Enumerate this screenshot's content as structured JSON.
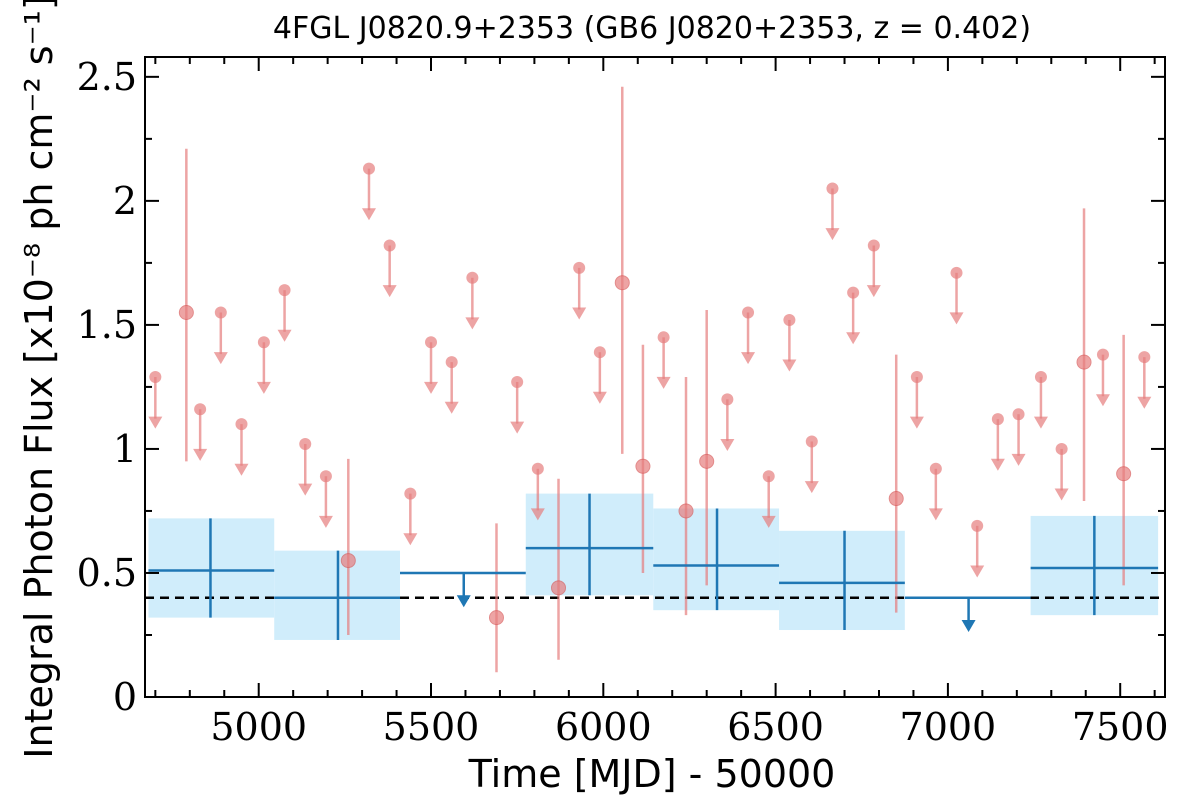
{
  "chart_data": {
    "type": "scatter",
    "title": "4FGL J0820.9+2353 (GB6 J0820+2353, z = 0.402)",
    "xlabel": "Time [MJD] - 50000",
    "ylabel": "Integral Photon Flux [x10⁻⁸ ph cm⁻² s⁻¹]",
    "xlim": [
      4670,
      7630
    ],
    "ylim": [
      0,
      2.58
    ],
    "x_ticks": [
      5000,
      5500,
      6000,
      6500,
      7000,
      7500
    ],
    "x_tick_labels": [
      "5000",
      "5500",
      "6000",
      "6500",
      "7000",
      "7500"
    ],
    "y_ticks": [
      0,
      0.5,
      1,
      1.5,
      2,
      2.5
    ],
    "y_tick_labels": [
      "0",
      "0.5",
      "1",
      "1.5",
      "2",
      "2.5"
    ],
    "grid": false,
    "reference_line": {
      "y": 0.4,
      "style": "dashed",
      "color": "#000000"
    },
    "colors": {
      "short_bins": "#e67e7e",
      "long_bins": "#1f77b4",
      "long_bins_band": "#d0edfb"
    },
    "series": [
      {
        "kind": "short-bin detections",
        "points": [
          {
            "x": 4790,
            "y": 1.55,
            "ylo": 0.95,
            "yhi": 2.21
          },
          {
            "x": 5260,
            "y": 0.55,
            "ylo": 0.25,
            "yhi": 0.96
          },
          {
            "x": 5690,
            "y": 0.32,
            "ylo": 0.1,
            "yhi": 0.7
          },
          {
            "x": 5870,
            "y": 0.44,
            "ylo": 0.15,
            "yhi": 0.88
          },
          {
            "x": 6055,
            "y": 1.67,
            "ylo": 0.98,
            "yhi": 2.46
          },
          {
            "x": 6115,
            "y": 0.93,
            "ylo": 0.5,
            "yhi": 1.42
          },
          {
            "x": 6240,
            "y": 0.75,
            "ylo": 0.33,
            "yhi": 1.29
          },
          {
            "x": 6300,
            "y": 0.95,
            "ylo": 0.45,
            "yhi": 1.56
          },
          {
            "x": 6850,
            "y": 0.8,
            "ylo": 0.34,
            "yhi": 1.38
          },
          {
            "x": 7395,
            "y": 1.35,
            "ylo": 0.79,
            "yhi": 1.97
          },
          {
            "x": 7510,
            "y": 0.9,
            "ylo": 0.45,
            "yhi": 1.46
          }
        ]
      },
      {
        "kind": "short-bin upper limits",
        "values": [
          [
            4700,
            1.29
          ],
          [
            4890,
            1.55
          ],
          [
            4830,
            1.16
          ],
          [
            4950,
            1.1
          ],
          [
            5015,
            1.43
          ],
          [
            5075,
            1.64
          ],
          [
            5135,
            1.02
          ],
          [
            5195,
            0.89
          ],
          [
            5320,
            2.13
          ],
          [
            5380,
            1.82
          ],
          [
            5440,
            0.82
          ],
          [
            5500,
            1.43
          ],
          [
            5560,
            1.35
          ],
          [
            5620,
            1.69
          ],
          [
            5750,
            1.27
          ],
          [
            5810,
            0.92
          ],
          [
            5930,
            1.73
          ],
          [
            5990,
            1.39
          ],
          [
            6175,
            1.45
          ],
          [
            6360,
            1.2
          ],
          [
            6420,
            1.55
          ],
          [
            6480,
            0.89
          ],
          [
            6540,
            1.52
          ],
          [
            6605,
            1.03
          ],
          [
            6665,
            2.05
          ],
          [
            6725,
            1.63
          ],
          [
            6785,
            1.82
          ],
          [
            6910,
            1.29
          ],
          [
            6965,
            0.92
          ],
          [
            7025,
            1.71
          ],
          [
            7085,
            0.69
          ],
          [
            7145,
            1.12
          ],
          [
            7205,
            1.14
          ],
          [
            7270,
            1.29
          ],
          [
            7330,
            1.0
          ],
          [
            7450,
            1.38
          ],
          [
            7570,
            1.37
          ]
        ]
      },
      {
        "kind": "long-bin detections",
        "points": [
          {
            "x": 4860,
            "xlo": 4680,
            "xhi": 5045,
            "y": 0.51,
            "ylo": 0.32,
            "yhi": 0.72
          },
          {
            "x": 5230,
            "xlo": 5045,
            "xhi": 5410,
            "y": 0.4,
            "ylo": 0.23,
            "yhi": 0.59
          },
          {
            "x": 5960,
            "xlo": 5775,
            "xhi": 6145,
            "y": 0.6,
            "ylo": 0.41,
            "yhi": 0.82
          },
          {
            "x": 6330,
            "xlo": 6145,
            "xhi": 6510,
            "y": 0.53,
            "ylo": 0.35,
            "yhi": 0.76
          },
          {
            "x": 6700,
            "xlo": 6510,
            "xhi": 6875,
            "y": 0.46,
            "ylo": 0.27,
            "yhi": 0.67
          },
          {
            "x": 7425,
            "xlo": 7240,
            "xhi": 7610,
            "y": 0.52,
            "ylo": 0.33,
            "yhi": 0.73
          }
        ]
      },
      {
        "kind": "long-bin upper limits",
        "points": [
          {
            "x": 5595,
            "xlo": 5410,
            "xhi": 5775,
            "y": 0.5
          },
          {
            "x": 7060,
            "xlo": 6875,
            "xhi": 7240,
            "y": 0.4
          }
        ]
      }
    ]
  }
}
